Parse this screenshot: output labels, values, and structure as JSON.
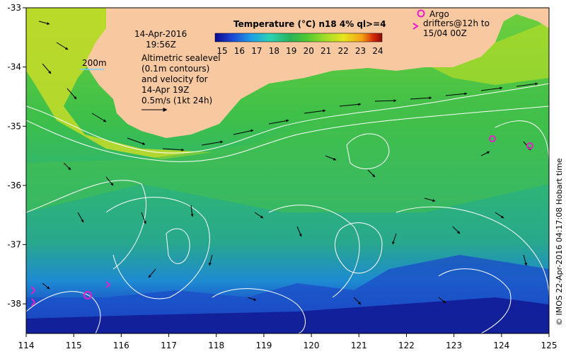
{
  "map": {
    "date": "14-Apr-2016",
    "time": "19:56Z",
    "scale_label": "200m",
    "legend_title": "Temperature (°C) n18 4% ql>=4",
    "colorbar_ticks": [
      "15",
      "16",
      "17",
      "18",
      "19",
      "20",
      "21",
      "22",
      "23",
      "24"
    ],
    "sealevel_lines": [
      "Altimetric sealevel",
      "(0.1m contours)",
      "and velocity for",
      "14-Apr 19Z",
      "0.5m/s (1kt 24h)"
    ],
    "argo_label": "Argo",
    "drifter_lines": [
      "drifters@12h to",
      "15/04 00Z"
    ],
    "credit": "© IMOS 22-Apr-2016 04:17:08 Hobart time",
    "x_ticks": [
      "114",
      "115",
      "116",
      "117",
      "118",
      "119",
      "120",
      "121",
      "122",
      "123",
      "124",
      "125"
    ],
    "y_ticks": [
      "-33",
      "-34",
      "-35",
      "-36",
      "-37",
      "-38"
    ],
    "colors": {
      "land": "#f8c9a0",
      "colormap": [
        "#0a0a8c",
        "#1e46d2",
        "#1ea0e6",
        "#2ad2b4",
        "#28b45a",
        "#50c832",
        "#a0dc28",
        "#e6e61e",
        "#f5a014",
        "#d2280a",
        "#8c0a0a"
      ],
      "argo": "#e61ecc",
      "contour": "#ffffff",
      "axis": "#000000"
    }
  }
}
